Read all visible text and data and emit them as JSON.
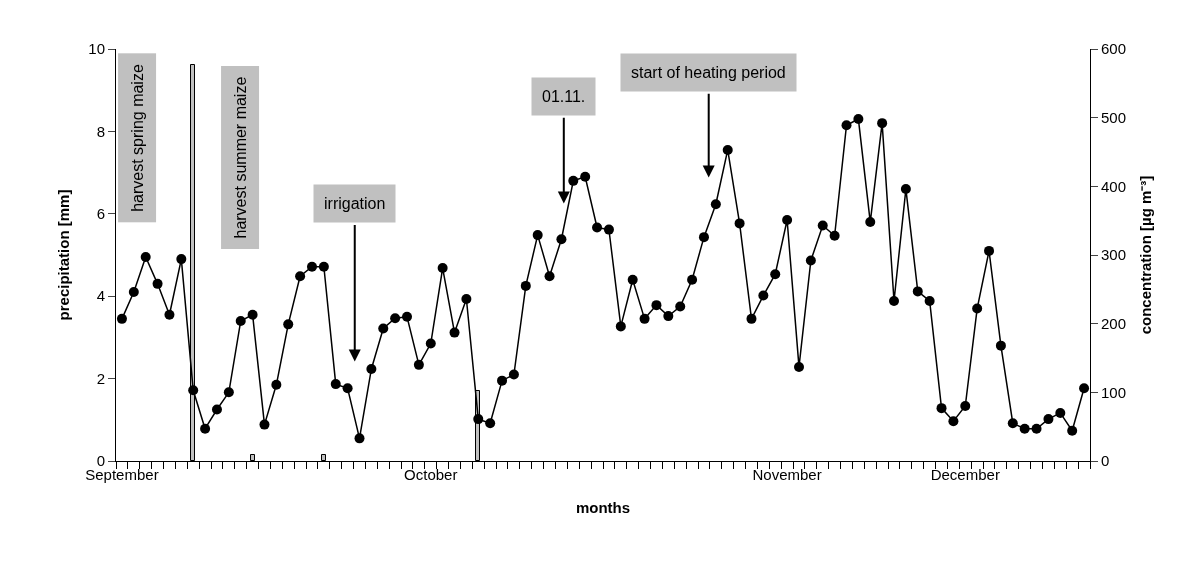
{
  "chart_data": {
    "type": "line",
    "xlabel": "months",
    "ylabel": "precipitation [mm]",
    "y2label": "concentration [µg m⁻³]",
    "categories": [
      "September",
      null,
      null,
      null,
      null,
      null,
      null,
      null,
      null,
      null,
      null,
      null,
      null,
      null,
      null,
      null,
      null,
      null,
      null,
      null,
      null,
      null,
      null,
      null,
      null,
      null,
      "October",
      null,
      null,
      null,
      null,
      null,
      null,
      null,
      null,
      null,
      null,
      null,
      null,
      null,
      null,
      null,
      null,
      null,
      null,
      null,
      null,
      null,
      null,
      null,
      null,
      null,
      null,
      null,
      null,
      null,
      "November",
      null,
      null,
      null,
      null,
      null,
      null,
      null,
      null,
      null,
      null,
      null,
      null,
      null,
      null,
      "December",
      null,
      null,
      null,
      null,
      null,
      null,
      null,
      null,
      null,
      null
    ],
    "series": [
      {
        "type": "bar",
        "color": "#c0c0c0",
        "values": [
          null,
          null,
          null,
          null,
          null,
          null,
          9.6,
          null,
          null,
          null,
          null,
          0.15,
          null,
          null,
          null,
          null,
          null,
          0.15,
          null,
          null,
          null,
          null,
          null,
          null,
          null,
          null,
          null,
          null,
          null,
          null,
          1.7,
          null,
          null,
          null,
          null,
          null,
          null,
          null,
          null,
          null,
          null,
          null,
          null,
          null,
          null,
          null,
          null,
          null,
          null,
          null,
          null,
          null,
          null,
          null,
          null,
          null,
          null,
          null,
          null,
          null,
          null,
          null,
          null,
          null,
          null,
          null,
          null,
          null,
          null,
          null,
          null,
          null,
          null,
          null,
          null,
          null,
          null,
          null,
          null,
          null,
          null,
          null
        ]
      },
      {
        "axis": "y2",
        "color": "#000000",
        "values": [
          207,
          246,
          297,
          258,
          213,
          294,
          103,
          47,
          75,
          100,
          204,
          213,
          53,
          111,
          199,
          269,
          283,
          283,
          112,
          106,
          33,
          134,
          193,
          208,
          210,
          140,
          171,
          281,
          187,
          236,
          61,
          55,
          117,
          126,
          255,
          329,
          269,
          323,
          408,
          414,
          340,
          337,
          196,
          264,
          207,
          227,
          211,
          225,
          264,
          326,
          374,
          453,
          346,
          207,
          241,
          272,
          351,
          137,
          292,
          343,
          328,
          489,
          498,
          348,
          492,
          233,
          396,
          247,
          233,
          77,
          58,
          80,
          222,
          306,
          168,
          55,
          47,
          47,
          61,
          70,
          44,
          106
        ]
      }
    ],
    "ylim": [
      0,
      10
    ],
    "yticks": [
      0,
      2,
      4,
      6,
      8,
      10
    ],
    "y2lim": [
      0,
      600
    ],
    "y2ticks": [
      0,
      100,
      200,
      300,
      400,
      500,
      600
    ],
    "marker": "circle",
    "line_style": "solid",
    "annotations": [
      "harvest spring maize",
      "harvest summer maize",
      "irrigation",
      "01.11.",
      "start of heating period"
    ]
  }
}
